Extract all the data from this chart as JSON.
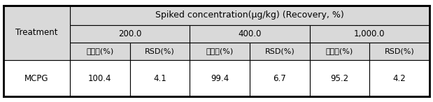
{
  "header_top": "Spiked concentration(μg/kg) (Recovery, %)",
  "concentrations": [
    "200.0",
    "400.0",
    "1,000.0"
  ],
  "subheaders": [
    "회수율(%)",
    "RSD(%)",
    "회수율(%)",
    "RSD(%)",
    "회수율(%)",
    "RSD(%)"
  ],
  "row_label": "MCPG",
  "col_label": "Treatment",
  "values": [
    "100.4",
    "4.1",
    "99.4",
    "6.7",
    "95.2",
    "4.2"
  ],
  "header_bg": "#d9d9d9",
  "subheader_bg": "#d9d9d9",
  "data_bg": "#ffffff",
  "border_color": "#000000",
  "text_color": "#000000",
  "font_size": 8.5,
  "header_font_size": 9.0
}
